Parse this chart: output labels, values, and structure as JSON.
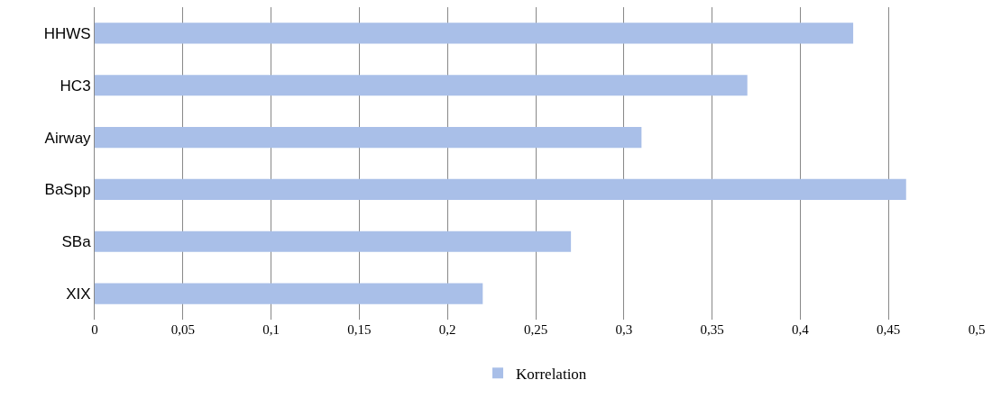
{
  "chart_data": {
    "type": "bar",
    "orientation": "horizontal",
    "categories": [
      "HHWS",
      "HC3",
      "Airway",
      "BaSpp",
      "SBa",
      "XIX"
    ],
    "series": [
      {
        "name": "Korrelation",
        "color": "#a9bfe8",
        "values": [
          0.43,
          0.37,
          0.31,
          0.46,
          0.27,
          0.22
        ]
      }
    ],
    "xlim": [
      0,
      0.5
    ],
    "xticks": [
      0,
      {
        "value": 0.05,
        "label": "0,05"
      },
      {
        "value": 0.1,
        "label": "0,1"
      },
      {
        "value": 0.15,
        "label": "0,15"
      },
      {
        "value": 0.2,
        "label": "0,2"
      },
      {
        "value": 0.25,
        "label": "0,25"
      },
      {
        "value": 0.3,
        "label": "0,3"
      },
      {
        "value": 0.35,
        "label": "0,35"
      },
      {
        "value": 0.4,
        "label": "0,4"
      },
      {
        "value": 0.45,
        "label": "0,45"
      },
      {
        "value": 0.5,
        "label": "0,5"
      }
    ],
    "grid": "x",
    "legend": "bottom"
  }
}
